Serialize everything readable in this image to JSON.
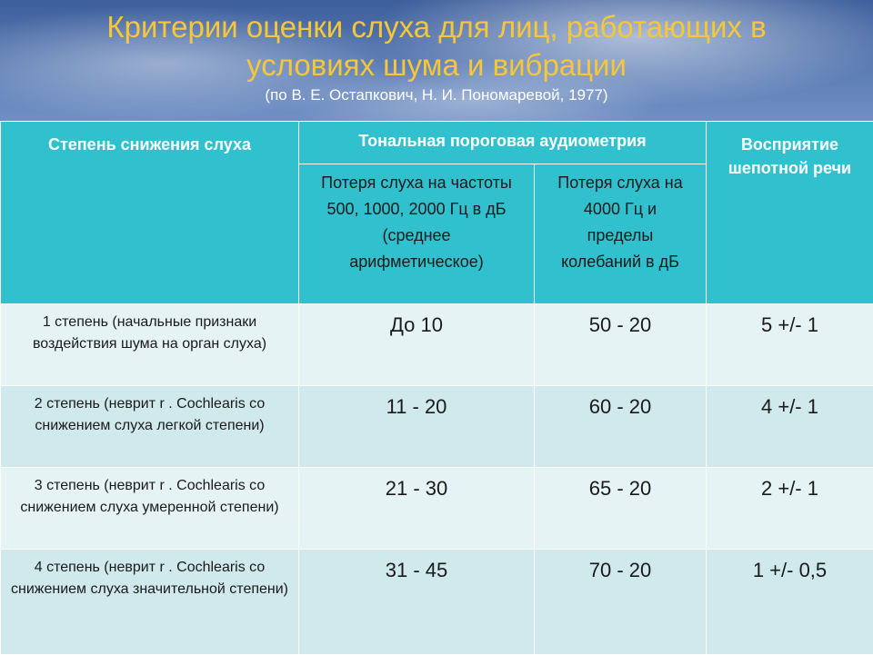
{
  "title": {
    "line1": "Критерии оценки слуха для лиц, работающих в",
    "line2": "условиях шума и вибрации",
    "subtitle": "(по В. Е. Остапкович, Н. И. Пономаревой, 1977)"
  },
  "table": {
    "headers": {
      "degree": "Степень снижения слуха",
      "audiometry": "Тональная пороговая аудиометрия",
      "loss_500": "Потеря слуха на частоты 500, 1000, 2000 Гц в дБ (среднее арифметическое)",
      "loss_4000": "Потеря слуха на 4000 Гц и пределы колебаний в дБ",
      "whisper": "Восприятие шепотной речи"
    },
    "rows": [
      {
        "degree": "1 степень (начальные признаки  воздействия шума на орган слуха)",
        "loss_500": "До 10",
        "loss_4000": "50 - 20",
        "whisper": "5 +/- 1"
      },
      {
        "degree": "2 степень (неврит  r . Cochlearis со снижением слуха легкой степени)",
        "loss_500": "11 - 20",
        "loss_4000": "60 - 20",
        "whisper": "4 +/- 1"
      },
      {
        "degree": "3 степень (неврит  r . Cochlearis со снижением слуха умеренной степени)",
        "loss_500": "21 - 30",
        "loss_4000": "65 - 20",
        "whisper": "2 +/- 1"
      },
      {
        "degree": "4 степень (неврит  r . Cochlearis со снижением слуха значительной степени)",
        "loss_500": "31 - 45",
        "loss_4000": "70 - 20",
        "whisper": "1 +/- 0,5"
      }
    ]
  }
}
